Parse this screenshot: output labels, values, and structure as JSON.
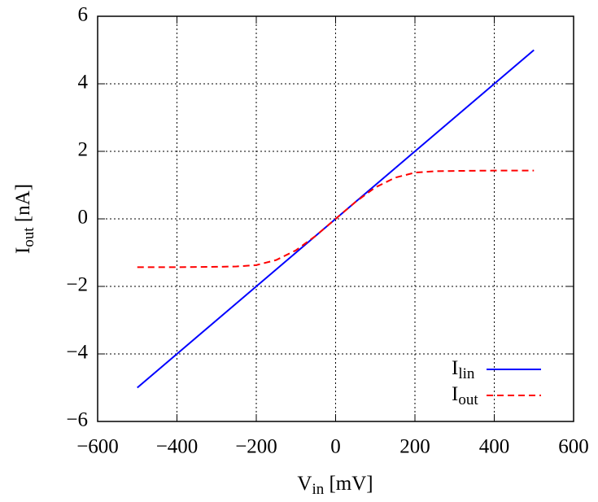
{
  "chart_data": {
    "type": "line",
    "xlabel": [
      "V",
      "in",
      " [mV]"
    ],
    "ylabel": [
      "I",
      "out",
      " [nA]"
    ],
    "x": [
      -500,
      -400,
      -300,
      -250,
      -200,
      -150,
      -100,
      -50,
      0,
      50,
      100,
      150,
      200,
      250,
      300,
      400,
      500
    ],
    "series": [
      {
        "name": [
          "I",
          "lin"
        ],
        "color": "#0000ff",
        "dash": false,
        "values": [
          -5,
          -4,
          -3,
          -2.5,
          -2,
          -1.5,
          -1,
          -0.5,
          0,
          0.5,
          1,
          1.5,
          2,
          2.5,
          3,
          4,
          5
        ]
      },
      {
        "name": [
          "I",
          "out"
        ],
        "color": "#ff0000",
        "dash": true,
        "values": [
          -1.43,
          -1.43,
          -1.42,
          -1.41,
          -1.37,
          -1.22,
          -0.93,
          -0.5,
          0,
          0.5,
          0.93,
          1.22,
          1.37,
          1.41,
          1.42,
          1.43,
          1.43
        ]
      }
    ],
    "xlim": [
      -600,
      600
    ],
    "ylim": [
      -6,
      6
    ],
    "xticks": [
      {
        "value": -600,
        "label": "−600"
      },
      {
        "value": -400,
        "label": "−400"
      },
      {
        "value": -200,
        "label": "−200"
      },
      0,
      200,
      400,
      600
    ],
    "yticks": [
      {
        "value": -6,
        "label": "−6"
      },
      {
        "value": -4,
        "label": "−4"
      },
      {
        "value": -2,
        "label": "−2"
      },
      0,
      2,
      4,
      6
    ],
    "grid": true,
    "legend": "lower right"
  }
}
